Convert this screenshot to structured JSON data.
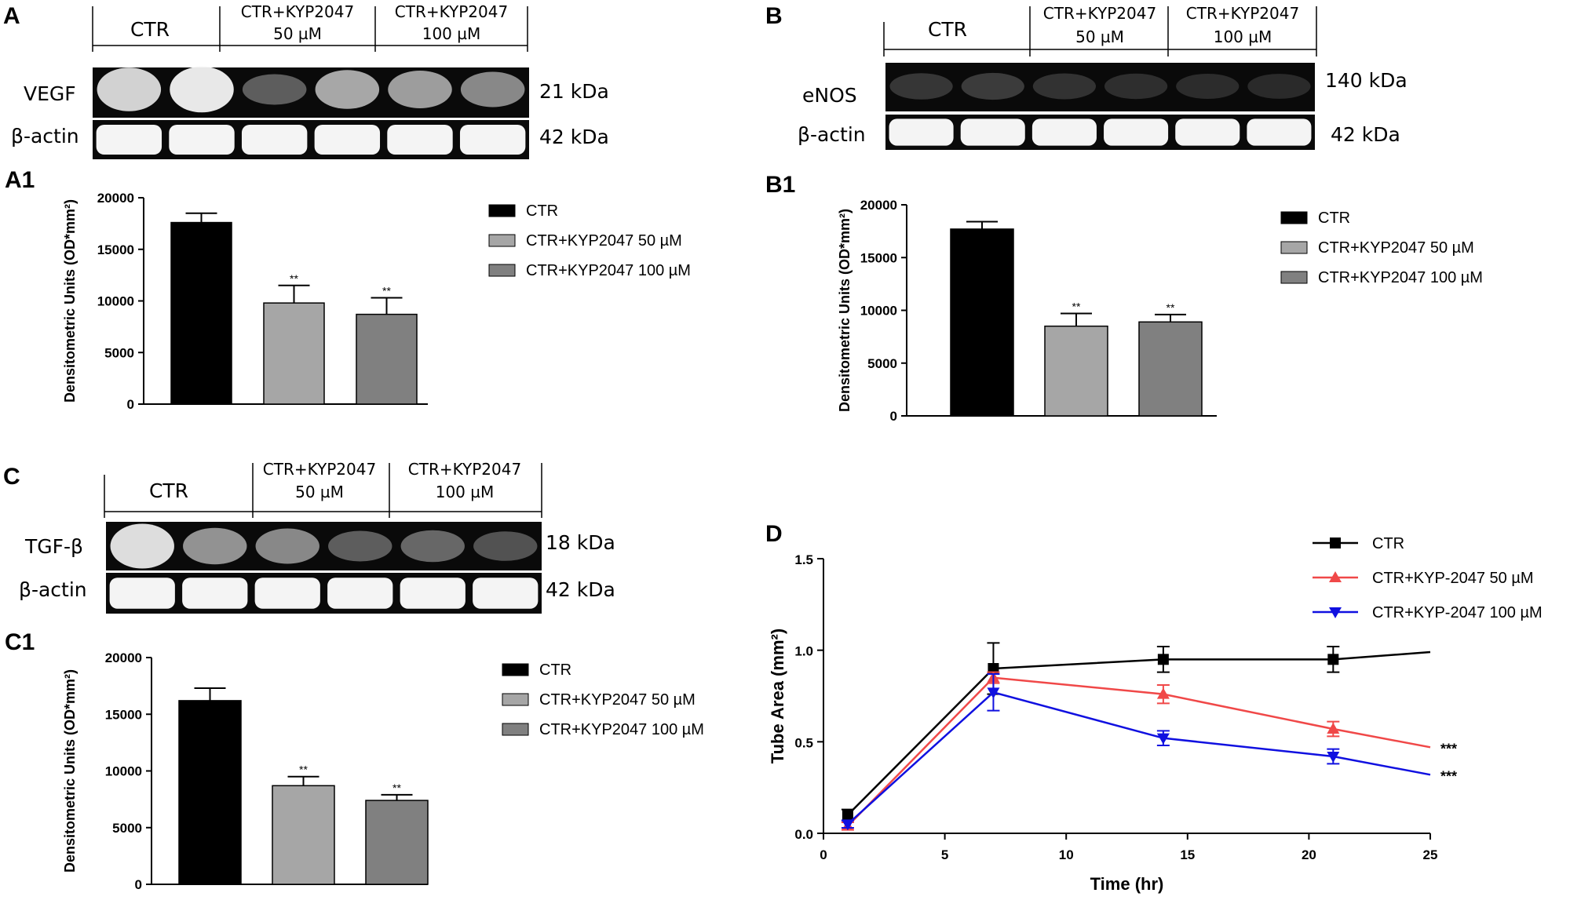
{
  "panels": {
    "A": "A",
    "A1": "A1",
    "B": "B",
    "B1": "B1",
    "C": "C",
    "C1": "C1",
    "D": "D"
  },
  "blots": {
    "A": {
      "headers": [
        "CTR",
        "CTR+KYP2047",
        "50 µM",
        "CTR+KYP2047",
        "100 µM"
      ],
      "protein": "VEGF",
      "protein_kda": "21 kDa",
      "control": "β-actin",
      "control_kda": "42 kDa",
      "band_intensity": [
        0.85,
        0.95,
        0.3,
        0.65,
        0.6,
        0.5
      ]
    },
    "B": {
      "headers": [
        "CTR",
        "CTR+KYP2047",
        "50 µM",
        "CTR+KYP2047",
        "100 µM"
      ],
      "protein": "eNOS",
      "protein_kda": "140 kDa",
      "control": "β-actin",
      "control_kda": "42 kDa",
      "band_intensity": [
        0.12,
        0.14,
        0.1,
        0.08,
        0.07,
        0.06
      ]
    },
    "C": {
      "headers": [
        "CTR",
        "CTR+KYP2047",
        "50 µM",
        "CTR+KYP2047",
        "100 µM"
      ],
      "protein": "TGF-β",
      "protein_kda": "18 kDa",
      "control": "β-actin",
      "control_kda": "42 kDa",
      "band_intensity": [
        0.9,
        0.55,
        0.5,
        0.3,
        0.35,
        0.25
      ]
    }
  },
  "chart_data": [
    {
      "panel": "A1",
      "type": "bar",
      "categories": [
        "CTR",
        "CTR+KYP2047 50 µM",
        "CTR+KYP2047 100 µM"
      ],
      "values": [
        17600,
        9800,
        8700
      ],
      "errors": [
        900,
        1700,
        1600
      ],
      "annotations": [
        "",
        "**",
        "**"
      ],
      "colors": [
        "#000000",
        "#a6a6a6",
        "#808080"
      ],
      "ylabel": "Densitometric Units (OD*mm²)",
      "ylim": [
        0,
        20000
      ],
      "yticks": [
        "0",
        "5000",
        "10000",
        "15000",
        "20000"
      ],
      "legend": [
        "CTR",
        "CTR+KYP2047 50 µM",
        "CTR+KYP2047 100 µM"
      ],
      "legend_position": "right"
    },
    {
      "panel": "B1",
      "type": "bar",
      "categories": [
        "CTR",
        "CTR+KYP2047 50 µM",
        "CTR+KYP2047 100 µM"
      ],
      "values": [
        17700,
        8500,
        8900
      ],
      "errors": [
        700,
        1200,
        700
      ],
      "annotations": [
        "",
        "**",
        "**"
      ],
      "colors": [
        "#000000",
        "#a6a6a6",
        "#808080"
      ],
      "ylabel": "Densitometric Units (OD*mm²)",
      "ylim": [
        0,
        20000
      ],
      "yticks": [
        "0",
        "5000",
        "10000",
        "15000",
        "20000"
      ],
      "legend": [
        "CTR",
        "CTR+KYP2047 50 µM",
        "CTR+KYP2047 100 µM"
      ],
      "legend_position": "right"
    },
    {
      "panel": "C1",
      "type": "bar",
      "categories": [
        "CTR",
        "CTR+KYP2047 50 µM",
        "CTR+KYP2047 100 µM"
      ],
      "values": [
        16200,
        8700,
        7400
      ],
      "errors": [
        1100,
        800,
        500
      ],
      "annotations": [
        "",
        "**",
        "**"
      ],
      "colors": [
        "#000000",
        "#a6a6a6",
        "#808080"
      ],
      "ylabel": "Densitometric Units (OD*mm²)",
      "ylim": [
        0,
        20000
      ],
      "yticks": [
        "0",
        "5000",
        "10000",
        "15000",
        "20000"
      ],
      "legend": [
        "CTR",
        "CTR+KYP2047 50 µM",
        "CTR+KYP2047 100 µM"
      ],
      "legend_position": "right"
    },
    {
      "panel": "D",
      "type": "line",
      "xlabel": "Time (hr)",
      "ylabel": "Tube Area (mm²)",
      "xlim": [
        0,
        25
      ],
      "ylim": [
        0,
        1.5
      ],
      "xticks": [
        "0",
        "5",
        "10",
        "15",
        "20",
        "25"
      ],
      "yticks": [
        "0.0",
        "0.5",
        "1.0",
        "1.5"
      ],
      "legend_position": "top-right",
      "series": [
        {
          "name": "CTR",
          "color": "#000000",
          "marker": "square",
          "x": [
            1,
            7,
            14,
            21,
            25
          ],
          "y": [
            0.1,
            0.9,
            0.95,
            0.95,
            0.99
          ],
          "err": [
            0.03,
            0.14,
            0.07,
            0.07,
            0
          ],
          "annotation": ""
        },
        {
          "name": "CTR+KYP-2047  50 µM",
          "color": "#f04848",
          "marker": "triangle-up",
          "x": [
            1,
            7,
            14,
            21,
            25
          ],
          "y": [
            0.04,
            0.85,
            0.76,
            0.57,
            0.47
          ],
          "err": [
            0.02,
            0.03,
            0.05,
            0.04,
            0
          ],
          "annotation": "***"
        },
        {
          "name": "CTR+KYP-2047  100 µM",
          "color": "#1010e0",
          "marker": "triangle-down",
          "x": [
            1,
            7,
            14,
            21,
            25
          ],
          "y": [
            0.05,
            0.77,
            0.52,
            0.42,
            0.32
          ],
          "err": [
            0.02,
            0.1,
            0.04,
            0.04,
            0
          ],
          "annotation": "***"
        }
      ]
    }
  ]
}
